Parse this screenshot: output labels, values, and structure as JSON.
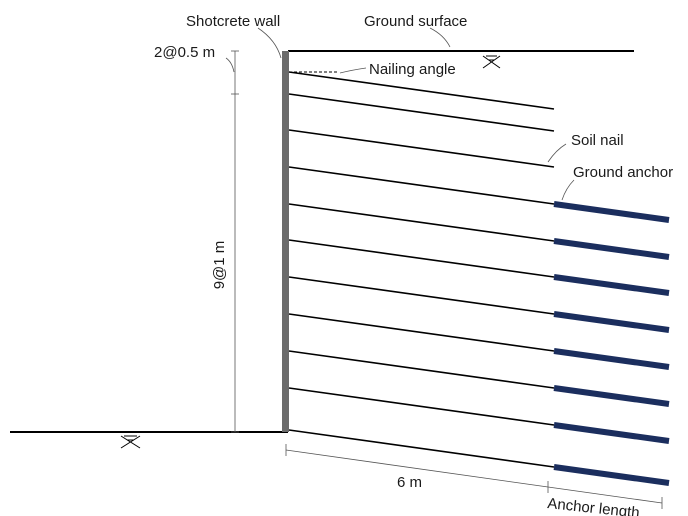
{
  "labels": {
    "shotcrete_wall": "Shotcrete wall",
    "ground_surface": "Ground surface",
    "top_spacing": "2@0.5 m",
    "nailing_angle": "Nailing angle",
    "soil_nail": "Soil nail",
    "ground_anchor": "Ground anchor",
    "main_spacing": "9@1 m",
    "nail_length": "6 m",
    "anchor_length": "Anchor length"
  },
  "counts": {
    "soil_nails_top": 2,
    "soil_nails_main": 9,
    "nails_with_anchor": 8
  },
  "colors": {
    "wall": "#6b6b6b",
    "anchor": "#1b2e5e",
    "line": "#000000"
  },
  "icons": {
    "ground_hatch": "ground-hatch-icon"
  }
}
